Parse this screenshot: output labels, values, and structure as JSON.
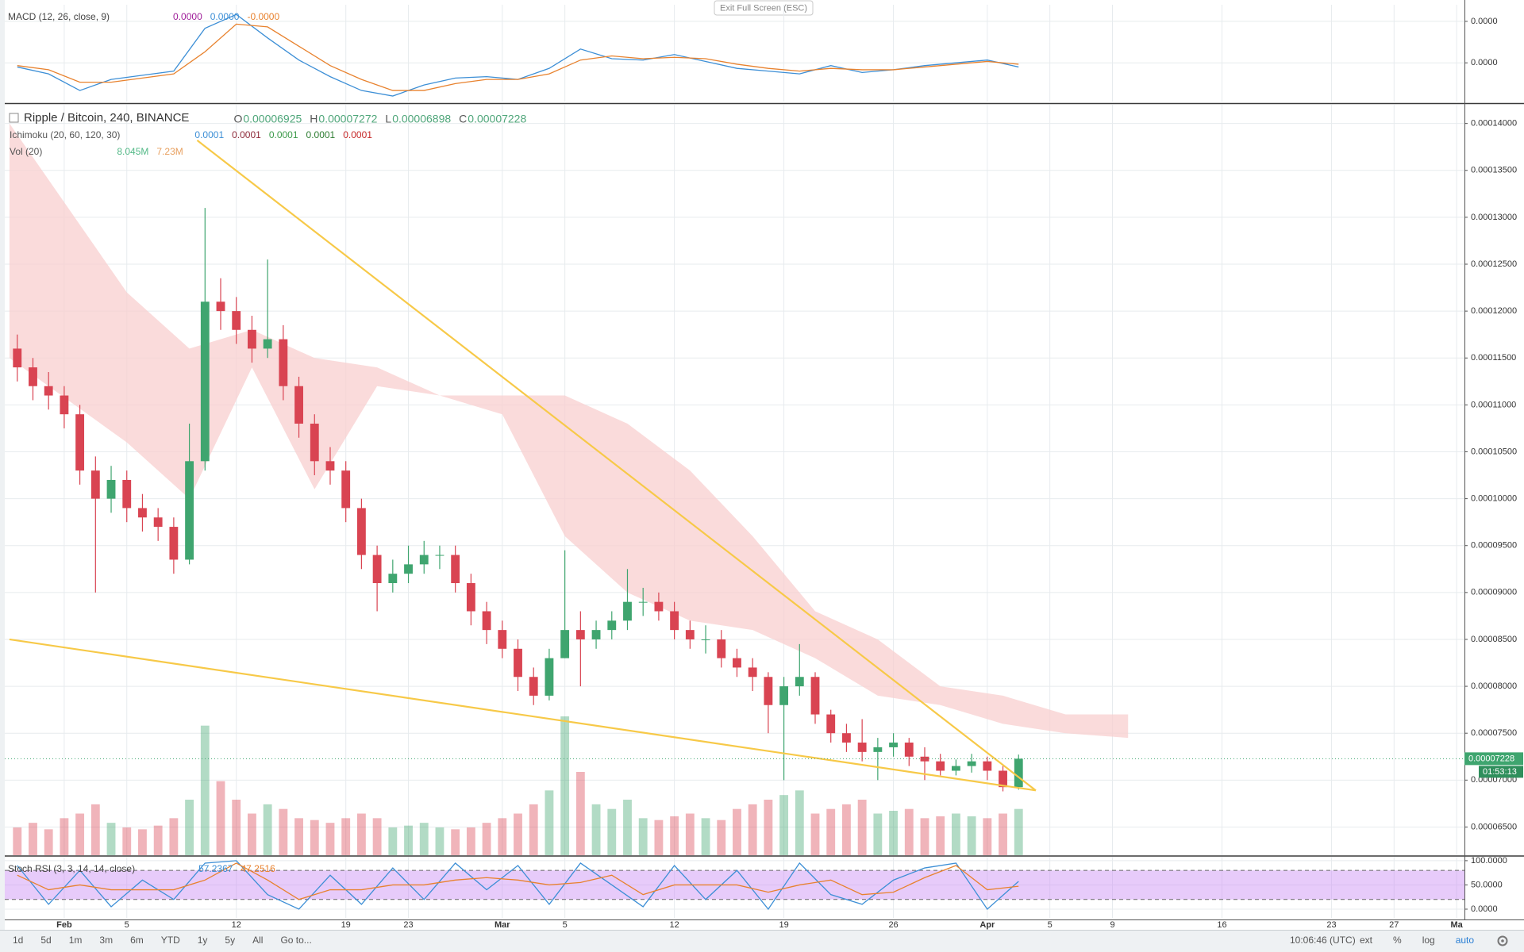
{
  "ui": {
    "exit_button": "Exit Full Screen (ESC)",
    "toolbar": [
      "1d",
      "5d",
      "1m",
      "3m",
      "6m",
      "YTD",
      "1y",
      "5y",
      "All",
      "Go to..."
    ],
    "clock": "10:06:46 (UTC)",
    "toolbar_right": [
      "ext",
      "%",
      "log",
      "auto"
    ],
    "last_price": "0.00007228",
    "countdown": "01:53:13"
  },
  "chart_data": [
    {
      "type": "line",
      "title": "MACD (12, 26, close, 9)",
      "legend": [
        {
          "text": "0.0000",
          "color": "#a0209a"
        },
        {
          "text": "0.0000",
          "color": "#3d8fd6"
        },
        {
          "text": "-0.0000",
          "color": "#e8822e"
        }
      ],
      "x": [
        -3,
        -1,
        1,
        3,
        5,
        7,
        9,
        11,
        13,
        15,
        17,
        19,
        21,
        23,
        25,
        27,
        29,
        31,
        33,
        35,
        37,
        39,
        41,
        43,
        45,
        47,
        49,
        51,
        53,
        55,
        57,
        59,
        61
      ],
      "series": [
        {
          "color": "#3d8fd6",
          "values": [
            -3e-07,
            -8e-07,
            -2e-06,
            -1.2e-06,
            -9e-07,
            -6e-07,
            2.5e-06,
            3.5e-06,
            1.8e-06,
            2e-07,
            -1e-06,
            -2e-06,
            -2.4e-06,
            -1.6e-06,
            -1.1e-06,
            -1e-06,
            -1.2e-06,
            -4e-07,
            1e-06,
            3e-07,
            2e-07,
            6e-07,
            1e-07,
            -4e-07,
            -6e-07,
            -8e-07,
            -2e-07,
            -7e-07,
            -5e-07,
            -2e-07,
            0.0,
            2e-07,
            -3e-07
          ]
        },
        {
          "color": "#e8822e",
          "values": [
            -2e-07,
            -5e-07,
            -1.4e-06,
            -1.4e-06,
            -1.1e-06,
            -8e-07,
            8e-07,
            2.8e-06,
            2.6e-06,
            1.2e-06,
            -2e-07,
            -1.2e-06,
            -2e-06,
            -2e-06,
            -1.5e-06,
            -1.2e-06,
            -1.2e-06,
            -8e-07,
            2e-07,
            5e-07,
            3e-07,
            4e-07,
            3e-07,
            -1e-07,
            -4e-07,
            -6e-07,
            -4e-07,
            -5e-07,
            -5e-07,
            -3e-07,
            -1e-07,
            1e-07,
            -1e-07
          ]
        }
      ],
      "ylim": [
        -2.8e-06,
        4.2e-06
      ],
      "yticks": [
        {
          "value": 0,
          "label": "0.0000"
        },
        {
          "value": 3e-06,
          "label": "0.0000"
        }
      ],
      "grid": true
    },
    {
      "type": "candlestick",
      "title": "Ripple / Bitcoin, 240, BINANCE",
      "ohlc_legend": [
        {
          "label": "O",
          "value": "0.00006925"
        },
        {
          "label": "H",
          "value": "0.00007272"
        },
        {
          "label": "L",
          "value": "0.00006898"
        },
        {
          "label": "C",
          "value": "0.00007228"
        }
      ],
      "indicators": [
        {
          "name": "Ichimoku (20, 60, 120, 30)",
          "values": [
            {
              "text": "0.0001",
              "color": "#3d8fd6"
            },
            {
              "text": "0.0001",
              "color": "#8e2a3a"
            },
            {
              "text": "0.0001",
              "color": "#3c9a4a"
            },
            {
              "text": "0.0001",
              "color": "#2e7d32"
            },
            {
              "text": "0.0001",
              "color": "#c62828"
            }
          ]
        },
        {
          "name": "Vol (20)",
          "values": [
            {
              "text": "8.045M",
              "color": "#53b987"
            },
            {
              "text": "7.23M",
              "color": "#e8a060"
            }
          ]
        }
      ],
      "x": [
        -3,
        -2,
        -1,
        0,
        1,
        2,
        3,
        4,
        5,
        6,
        7,
        8,
        9,
        10,
        11,
        12,
        13,
        14,
        15,
        16,
        17,
        18,
        19,
        20,
        21,
        22,
        23,
        24,
        25,
        26,
        27,
        28,
        29,
        30,
        31,
        32,
        33,
        34,
        35,
        36,
        37,
        38,
        39,
        40,
        41,
        42,
        43,
        44,
        45,
        46,
        47,
        48,
        49,
        50,
        51,
        52,
        53,
        54,
        55,
        56,
        57,
        58,
        59,
        60,
        61
      ],
      "open": [
        0.000116,
        0.000114,
        0.000112,
        0.000111,
        0.000109,
        0.000103,
        0.0001,
        0.000102,
        9.9e-05,
        9.8e-05,
        9.7e-05,
        9.35e-05,
        0.000104,
        0.000121,
        0.00012,
        0.000118,
        0.000116,
        0.000117,
        0.000112,
        0.000108,
        0.000104,
        0.000103,
        9.9e-05,
        9.4e-05,
        9.1e-05,
        9.2e-05,
        9.3e-05,
        9.4e-05,
        9.4e-05,
        9.1e-05,
        8.8e-05,
        8.6e-05,
        8.4e-05,
        8.1e-05,
        7.9e-05,
        8.3e-05,
        8.6e-05,
        8.5e-05,
        8.6e-05,
        8.7e-05,
        8.9e-05,
        8.9e-05,
        8.8e-05,
        8.6e-05,
        8.5e-05,
        8.5e-05,
        8.3e-05,
        8.2e-05,
        8.1e-05,
        7.8e-05,
        8e-05,
        8.1e-05,
        7.7e-05,
        7.5e-05,
        7.4e-05,
        7.3e-05,
        7.35e-05,
        7.4e-05,
        7.25e-05,
        7.2e-05,
        7.1e-05,
        7.15e-05,
        7.2e-05,
        7.1e-05,
        6.925e-05
      ],
      "high": [
        0.0001175,
        0.000115,
        0.0001135,
        0.000112,
        0.00011,
        0.0001045,
        0.0001035,
        0.000103,
        0.0001005,
        9.9e-05,
        9.8e-05,
        0.000108,
        0.000131,
        0.0001235,
        0.0001215,
        0.0001195,
        0.0001255,
        0.0001185,
        0.000113,
        0.000109,
        0.0001055,
        0.000104,
        0.0001,
        9.5e-05,
        9.35e-05,
        9.5e-05,
        9.55e-05,
        9.5e-05,
        9.5e-05,
        9.2e-05,
        8.9e-05,
        8.7e-05,
        8.5e-05,
        8.2e-05,
        8.4e-05,
        9.45e-05,
        8.8e-05,
        8.7e-05,
        8.8e-05,
        9.25e-05,
        9.05e-05,
        9e-05,
        8.9e-05,
        8.7e-05,
        8.65e-05,
        8.6e-05,
        8.4e-05,
        8.3e-05,
        8.15e-05,
        8.1e-05,
        8.45e-05,
        8.15e-05,
        7.75e-05,
        7.6e-05,
        7.65e-05,
        7.45e-05,
        7.5e-05,
        7.45e-05,
        7.35e-05,
        7.28e-05,
        7.22e-05,
        7.28e-05,
        7.25e-05,
        7.15e-05,
        7.272e-05
      ],
      "low": [
        0.0001125,
        0.0001105,
        0.0001095,
        0.0001075,
        0.0001015,
        9e-05,
        9.85e-05,
        9.75e-05,
        9.65e-05,
        9.55e-05,
        9.2e-05,
        9.3e-05,
        0.000103,
        0.000118,
        0.0001165,
        0.0001145,
        0.000115,
        0.0001105,
        0.0001065,
        0.0001025,
        0.0001015,
        9.75e-05,
        9.25e-05,
        8.8e-05,
        9e-05,
        9.1e-05,
        9.2e-05,
        9.25e-05,
        9e-05,
        8.65e-05,
        8.45e-05,
        8.3e-05,
        7.95e-05,
        7.8e-05,
        7.85e-05,
        8.3e-05,
        8e-05,
        8.4e-05,
        8.5e-05,
        8.6e-05,
        8.75e-05,
        8.7e-05,
        8.5e-05,
        8.4e-05,
        8.35e-05,
        8.2e-05,
        8.1e-05,
        7.95e-05,
        7.5e-05,
        7e-05,
        7.9e-05,
        7.6e-05,
        7.4e-05,
        7.3e-05,
        7.2e-05,
        7e-05,
        7.25e-05,
        7.15e-05,
        7e-05,
        7.05e-05,
        7.05e-05,
        7.08e-05,
        7e-05,
        6.88e-05,
        6.898e-05
      ],
      "close": [
        0.000114,
        0.000112,
        0.000111,
        0.000109,
        0.000103,
        0.0001,
        0.000102,
        9.9e-05,
        9.8e-05,
        9.7e-05,
        9.35e-05,
        0.000104,
        0.000121,
        0.00012,
        0.000118,
        0.000116,
        0.000117,
        0.000112,
        0.000108,
        0.000104,
        0.000103,
        9.9e-05,
        9.4e-05,
        9.1e-05,
        9.2e-05,
        9.3e-05,
        9.4e-05,
        9.4e-05,
        9.1e-05,
        8.8e-05,
        8.6e-05,
        8.4e-05,
        8.1e-05,
        7.9e-05,
        8.3e-05,
        8.6e-05,
        8.5e-05,
        8.6e-05,
        8.7e-05,
        8.9e-05,
        8.9e-05,
        8.8e-05,
        8.6e-05,
        8.5e-05,
        8.5e-05,
        8.3e-05,
        8.2e-05,
        8.1e-05,
        7.8e-05,
        8e-05,
        8.1e-05,
        7.7e-05,
        7.5e-05,
        7.4e-05,
        7.3e-05,
        7.35e-05,
        7.4e-05,
        7.25e-05,
        7.2e-05,
        7.1e-05,
        7.15e-05,
        7.2e-05,
        7.1e-05,
        6.925e-05,
        7.228e-05
      ],
      "volume": [
        30,
        35,
        28,
        40,
        45,
        55,
        35,
        30,
        28,
        32,
        40,
        60,
        140,
        80,
        60,
        45,
        55,
        50,
        40,
        38,
        35,
        40,
        45,
        40,
        30,
        32,
        35,
        30,
        28,
        30,
        35,
        40,
        45,
        55,
        70,
        150,
        90,
        55,
        50,
        60,
        40,
        38,
        42,
        45,
        40,
        38,
        50,
        55,
        60,
        65,
        70,
        45,
        50,
        55,
        60,
        45,
        48,
        50,
        40,
        42,
        45,
        42,
        40,
        45,
        50
      ],
      "up_color": "#3fa56f",
      "down_color": "#d94452",
      "cloud": {
        "color": "#f8cfcf",
        "x": [
          -3.5,
          4,
          8,
          12,
          16,
          20,
          24,
          28,
          32,
          36,
          40,
          44,
          48,
          52,
          56,
          60,
          64,
          68
        ],
        "upper": [
          0.00014,
          0.000122,
          0.000116,
          0.000118,
          0.000115,
          0.000114,
          0.000111,
          0.000111,
          0.000111,
          0.000108,
          0.000103,
          9.6e-05,
          8.8e-05,
          8.5e-05,
          8e-05,
          7.9e-05,
          7.7e-05,
          7.7e-05
        ],
        "lower": [
          0.000115,
          0.000106,
          0.0001,
          0.000114,
          0.000101,
          0.000112,
          0.000111,
          0.000109,
          9.6e-05,
          9e-05,
          8.7e-05,
          8.6e-05,
          8.3e-05,
          7.9e-05,
          7.8e-05,
          7.6e-05,
          7.5e-05,
          7.45e-05
        ]
      },
      "trendlines": {
        "color": "#f7c948",
        "lines": [
          {
            "x": [
              8.5,
              62.1
            ],
            "y": [
              0.0001382,
              6.89e-05
            ]
          },
          {
            "x": [
              -3.5,
              62.1
            ],
            "y": [
              8.5e-05,
              6.89e-05
            ]
          }
        ]
      },
      "xlim": [
        -3.8,
        89.5
      ],
      "xticks": [
        {
          "value": 0,
          "label": "Feb"
        },
        {
          "value": 4,
          "label": "5"
        },
        {
          "value": 11,
          "label": "12"
        },
        {
          "value": 18,
          "label": "19"
        },
        {
          "value": 22,
          "label": "23"
        },
        {
          "value": 28,
          "label": "Mar"
        },
        {
          "value": 32,
          "label": "5"
        },
        {
          "value": 39,
          "label": "12"
        },
        {
          "value": 46,
          "label": "19"
        },
        {
          "value": 53,
          "label": "26"
        },
        {
          "value": 59,
          "label": "Apr"
        },
        {
          "value": 63,
          "label": "5"
        },
        {
          "value": 67,
          "label": "9"
        },
        {
          "value": 74,
          "label": "16"
        },
        {
          "value": 81,
          "label": "23"
        },
        {
          "value": 85,
          "label": "27"
        },
        {
          "value": 89,
          "label": "Ma"
        }
      ],
      "ylim": [
        6.25e-05,
        0.000142
      ],
      "yticks": [
        {
          "value": 6.5e-05,
          "label": "0.00006500"
        },
        {
          "value": 7e-05,
          "label": "0.00007000"
        },
        {
          "value": 7.5e-05,
          "label": "0.00007500"
        },
        {
          "value": 8e-05,
          "label": "0.00008000"
        },
        {
          "value": 8.5e-05,
          "label": "0.00008500"
        },
        {
          "value": 9e-05,
          "label": "0.00009000"
        },
        {
          "value": 9.5e-05,
          "label": "0.00009500"
        },
        {
          "value": 0.0001,
          "label": "0.00010000"
        },
        {
          "value": 0.000105,
          "label": "0.00010500"
        },
        {
          "value": 0.00011,
          "label": "0.00011000"
        },
        {
          "value": 0.000115,
          "label": "0.00011500"
        },
        {
          "value": 0.00012,
          "label": "0.00012000"
        },
        {
          "value": 0.000125,
          "label": "0.00012500"
        },
        {
          "value": 0.00013,
          "label": "0.00013000"
        },
        {
          "value": 0.000135,
          "label": "0.00013500"
        },
        {
          "value": 0.00014,
          "label": "0.00014000"
        }
      ],
      "grid": true
    },
    {
      "type": "line",
      "title": "Stoch RSI (3, 3, 14, 14, close)",
      "legend": [
        {
          "text": "57.2367",
          "color": "#3d8fd6"
        },
        {
          "text": "47.2516",
          "color": "#e8822e"
        }
      ],
      "x": [
        -3,
        -1,
        1,
        3,
        5,
        7,
        9,
        11,
        13,
        15,
        17,
        19,
        21,
        23,
        25,
        27,
        29,
        31,
        33,
        35,
        37,
        39,
        41,
        43,
        45,
        47,
        49,
        51,
        53,
        55,
        57,
        59,
        61
      ],
      "series": [
        {
          "color": "#3d8fd6",
          "values": [
            90,
            10,
            80,
            5,
            60,
            20,
            95,
            100,
            30,
            0,
            70,
            10,
            85,
            20,
            95,
            40,
            90,
            10,
            95,
            50,
            5,
            90,
            20,
            80,
            0,
            95,
            30,
            10,
            60,
            85,
            95,
            0,
            57.2367
          ]
        },
        {
          "color": "#e8822e",
          "values": [
            70,
            40,
            50,
            40,
            40,
            40,
            60,
            95,
            60,
            20,
            40,
            40,
            50,
            50,
            60,
            65,
            60,
            50,
            55,
            70,
            30,
            50,
            50,
            50,
            35,
            50,
            60,
            30,
            35,
            65,
            90,
            40,
            47.2516
          ]
        }
      ],
      "bands": [
        20,
        80
      ],
      "band_color": "#c98cf5",
      "ylim": [
        -18,
        108
      ],
      "yticks": [
        {
          "value": 0,
          "label": "0.0000"
        },
        {
          "value": 50,
          "label": "50.0000"
        },
        {
          "value": 100,
          "label": "100.0000"
        }
      ],
      "grid": true
    }
  ]
}
